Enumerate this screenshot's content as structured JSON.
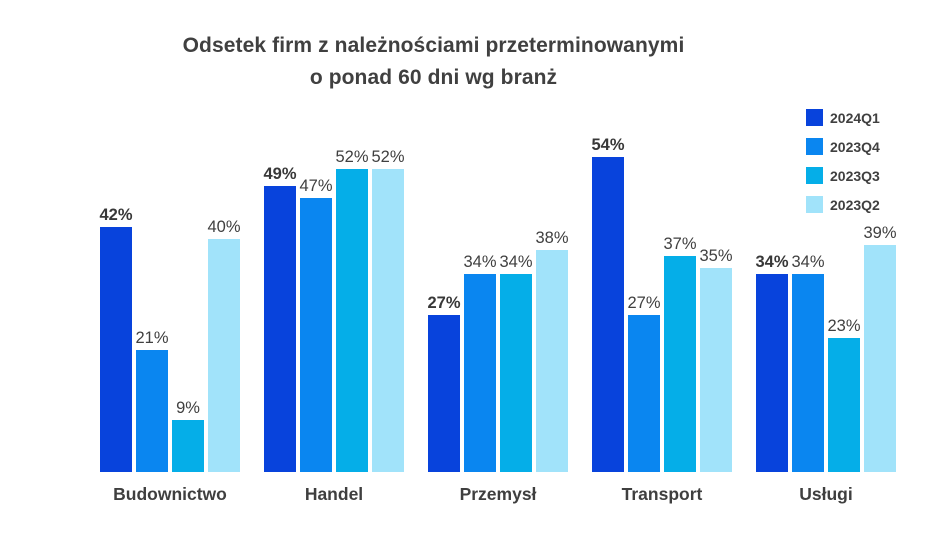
{
  "title": {
    "line1": "Odsetek firm z należnościami przeterminowanymi",
    "line2": "o ponad 60 dni wg branż"
  },
  "colors": {
    "title_text": "#404040",
    "label_text": "#404040",
    "category_text": "#3f3f3f",
    "background": "#ffffff"
  },
  "chart_data": {
    "type": "bar",
    "title": "Odsetek firm z należnościami przeterminowanymi o ponad 60 dni wg branż",
    "categories": [
      "Budownictwo",
      "Handel",
      "Przemysł",
      "Transport",
      "Usługi"
    ],
    "series": [
      {
        "name": "2024Q1",
        "color": "#0843DC",
        "values": [
          42,
          49,
          27,
          54,
          34
        ]
      },
      {
        "name": "2023Q4",
        "color": "#0A86F0",
        "values": [
          21,
          47,
          34,
          27,
          34
        ]
      },
      {
        "name": "2023Q3",
        "color": "#05AEE8",
        "values": [
          9,
          52,
          34,
          37,
          23
        ]
      },
      {
        "name": "2023Q2",
        "color": "#A1E3FA",
        "values": [
          40,
          52,
          38,
          35,
          39
        ]
      }
    ],
    "value_suffix": "%",
    "data_labels": true,
    "xlabel": "",
    "ylabel": "",
    "ylim": [
      0,
      56.6
    ],
    "grid": false,
    "axes_visible": false,
    "legend_position": "top-right"
  }
}
